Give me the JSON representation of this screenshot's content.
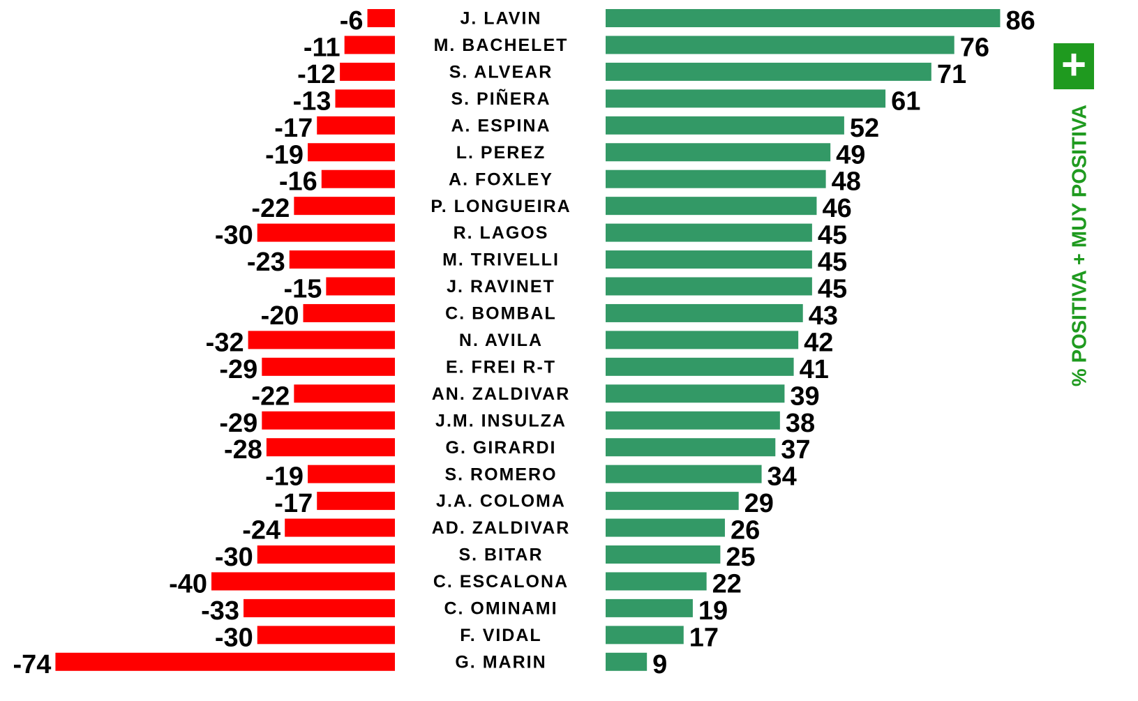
{
  "chart_data": {
    "type": "diverging-bar",
    "categories": [
      "J. LAVIN",
      "M. BACHELET",
      "S. ALVEAR",
      "S. PIÑERA",
      "A. ESPINA",
      "L. PEREZ",
      "A. FOXLEY",
      "P. LONGUEIRA",
      "R. LAGOS",
      "M. TRIVELLI",
      "J. RAVINET",
      "C. BOMBAL",
      "N. AVILA",
      "E. FREI R-T",
      "AN. ZALDIVAR",
      "J.M. INSULZA",
      "G. GIRARDI",
      "S. ROMERO",
      "J.A. COLOMA",
      "AD. ZALDIVAR",
      "S. BITAR",
      "C. ESCALONA",
      "C. OMINAMI",
      "F. VIDAL",
      "G. MARIN"
    ],
    "series": [
      {
        "color": "#ff0000",
        "values": [
          -6,
          -11,
          -12,
          -13,
          -17,
          -19,
          -16,
          -22,
          -30,
          -23,
          -15,
          -20,
          -32,
          -29,
          -22,
          -29,
          -28,
          -19,
          -17,
          -24,
          -30,
          -40,
          -33,
          -30,
          -74
        ]
      },
      {
        "color": "#339966",
        "values": [
          86,
          76,
          71,
          61,
          52,
          49,
          48,
          46,
          45,
          45,
          45,
          43,
          42,
          41,
          39,
          38,
          37,
          34,
          29,
          26,
          25,
          22,
          19,
          17,
          9
        ]
      }
    ],
    "badge": "+",
    "side_label": "% POSITIVA + MUY POSITIVA",
    "side_color": "#1f9a1f"
  }
}
